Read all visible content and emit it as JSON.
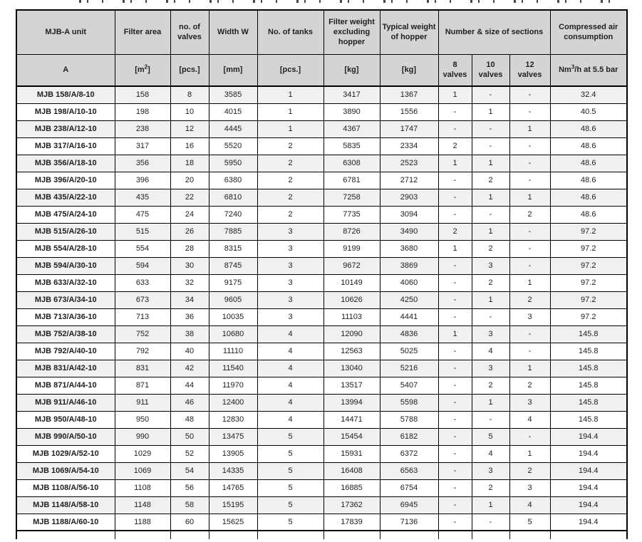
{
  "colors": {
    "header_bg": "#d4d4d4",
    "row_shaded_bg": "#f0f0f0",
    "row_plain_bg": "#ffffff",
    "border": "#000000",
    "text": "#1f1f1f"
  },
  "table": {
    "header_row1": [
      "MJB-A unit",
      "Filter area",
      "no. of valves",
      "Width W",
      "No. of tanks",
      "Filter weight excluding hopper",
      "Typical weight of hopper",
      "Number & size of sections",
      "Compressed air consumption"
    ],
    "header_row2": {
      "a": "A",
      "m2_pre": "[m",
      "m2_sup": "2",
      "m2_post": "]",
      "pcs_valves": "[pcs.]",
      "mm": "[mm]",
      "pcs_tanks": "[pcs.]",
      "kg_filter": "[kg]",
      "kg_hopper": "[kg]",
      "v8_num": "8",
      "v8_word": "valves",
      "v10_num": "10",
      "v10_word": "valves",
      "v12_num": "12",
      "v12_word": "valves",
      "nm3_pre": "Nm",
      "nm3_sup": "3",
      "nm3_post": "/h at 5.5 bar"
    },
    "rows": [
      [
        "MJB 158/A/8-10",
        "158",
        "8",
        "3585",
        "1",
        "3417",
        "1367",
        "1",
        "-",
        "-",
        "32.4"
      ],
      [
        "MJB 198/A/10-10",
        "198",
        "10",
        "4015",
        "1",
        "3890",
        "1556",
        "-",
        "1",
        "-",
        "40.5"
      ],
      [
        "MJB 238/A/12-10",
        "238",
        "12",
        "4445",
        "1",
        "4367",
        "1747",
        "-",
        "-",
        "1",
        "48.6"
      ],
      [
        "MJB 317/A/16-10",
        "317",
        "16",
        "5520",
        "2",
        "5835",
        "2334",
        "2",
        "-",
        "-",
        "48.6"
      ],
      [
        "MJB 356/A/18-10",
        "356",
        "18",
        "5950",
        "2",
        "6308",
        "2523",
        "1",
        "1",
        "-",
        "48.6"
      ],
      [
        "MJB 396/A/20-10",
        "396",
        "20",
        "6380",
        "2",
        "6781",
        "2712",
        "-",
        "2",
        "-",
        "48.6"
      ],
      [
        "MJB 435/A/22-10",
        "435",
        "22",
        "6810",
        "2",
        "7258",
        "2903",
        "-",
        "1",
        "1",
        "48.6"
      ],
      [
        "MJB 475/A/24-10",
        "475",
        "24",
        "7240",
        "2",
        "7735",
        "3094",
        "-",
        "-",
        "2",
        "48.6"
      ],
      [
        "MJB 515/A/26-10",
        "515",
        "26",
        "7885",
        "3",
        "8726",
        "3490",
        "2",
        "1",
        "-",
        "97.2"
      ],
      [
        "MJB 554/A/28-10",
        "554",
        "28",
        "8315",
        "3",
        "9199",
        "3680",
        "1",
        "2",
        "-",
        "97.2"
      ],
      [
        "MJB 594/A/30-10",
        "594",
        "30",
        "8745",
        "3",
        "9672",
        "3869",
        "-",
        "3",
        "-",
        "97.2"
      ],
      [
        "MJB 633/A/32-10",
        "633",
        "32",
        "9175",
        "3",
        "10149",
        "4060",
        "-",
        "2",
        "1",
        "97.2"
      ],
      [
        "MJB 673/A/34-10",
        "673",
        "34",
        "9605",
        "3",
        "10626",
        "4250",
        "-",
        "1",
        "2",
        "97.2"
      ],
      [
        "MJB 713/A/36-10",
        "713",
        "36",
        "10035",
        "3",
        "11103",
        "4441",
        "-",
        "-",
        "3",
        "97.2"
      ],
      [
        "MJB 752/A/38-10",
        "752",
        "38",
        "10680",
        "4",
        "12090",
        "4836",
        "1",
        "3",
        "-",
        "145.8"
      ],
      [
        "MJB 792/A/40-10",
        "792",
        "40",
        "11110",
        "4",
        "12563",
        "5025",
        "-",
        "4",
        "-",
        "145.8"
      ],
      [
        "MJB 831/A/42-10",
        "831",
        "42",
        "11540",
        "4",
        "13040",
        "5216",
        "-",
        "3",
        "1",
        "145.8"
      ],
      [
        "MJB 871/A/44-10",
        "871",
        "44",
        "11970",
        "4",
        "13517",
        "5407",
        "-",
        "2",
        "2",
        "145.8"
      ],
      [
        "MJB 911/A/46-10",
        "911",
        "46",
        "12400",
        "4",
        "13994",
        "5598",
        "-",
        "1",
        "3",
        "145.8"
      ],
      [
        "MJB 950/A/48-10",
        "950",
        "48",
        "12830",
        "4",
        "14471",
        "5788",
        "-",
        "-",
        "4",
        "145.8"
      ],
      [
        "MJB 990/A/50-10",
        "990",
        "50",
        "13475",
        "5",
        "15454",
        "6182",
        "-",
        "5",
        "-",
        "194.4"
      ],
      [
        "MJB 1029/A/52-10",
        "1029",
        "52",
        "13905",
        "5",
        "15931",
        "6372",
        "-",
        "4",
        "1",
        "194.4"
      ],
      [
        "MJB 1069/A/54-10",
        "1069",
        "54",
        "14335",
        "5",
        "16408",
        "6563",
        "-",
        "3",
        "2",
        "194.4"
      ],
      [
        "MJB 1108/A/56-10",
        "1108",
        "56",
        "14765",
        "5",
        "16885",
        "6754",
        "-",
        "2",
        "3",
        "194.4"
      ],
      [
        "MJB 1148/A/58-10",
        "1148",
        "58",
        "15195",
        "5",
        "17362",
        "6945",
        "-",
        "1",
        "4",
        "194.4"
      ],
      [
        "MJB 1188/A/60-10",
        "1188",
        "60",
        "15625",
        "5",
        "17839",
        "7136",
        "-",
        "-",
        "5",
        "194.4"
      ]
    ]
  }
}
